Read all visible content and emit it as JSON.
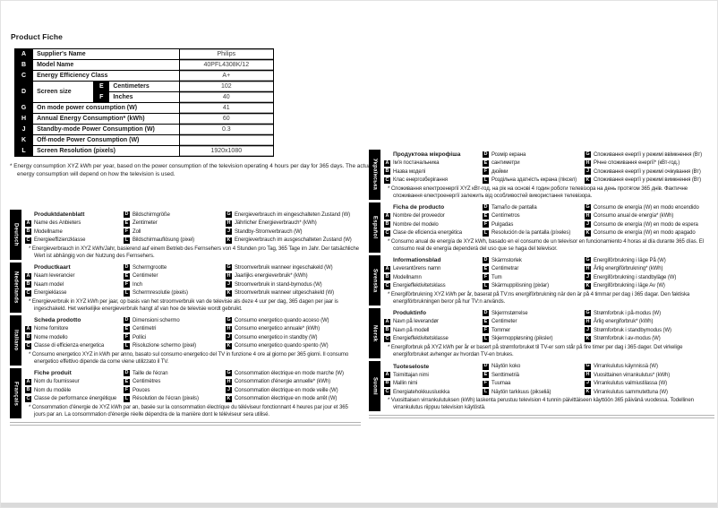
{
  "colors": {
    "badge_bg": "#000000",
    "page_bg": "#ffffff",
    "rule_gray": "#b3b3b3"
  },
  "page": {
    "title": "Product Fiche",
    "footnote": "* Energy consumption XYZ kWh per year, based on the power consumption of the television operating 4 hours per day for 365 days. The actual energy consumption will depend on how the television is used."
  },
  "letters": {
    "col1": [
      "A",
      "B",
      "C"
    ],
    "col2": [
      "D",
      "E",
      "F",
      "L"
    ],
    "col3": [
      "G",
      "H",
      "J",
      "K"
    ]
  },
  "fiche_table": {
    "rows": [
      {
        "key": "A",
        "label": "Supplier's Name",
        "value": "Philips"
      },
      {
        "key": "B",
        "label": "Model Name",
        "value": "40PFL4308K/12"
      },
      {
        "key": "C",
        "label": "Energy Efficiency Class",
        "value": "A+"
      },
      {
        "key": "D",
        "label": "Screen size",
        "sub": [
          {
            "key": "E",
            "label": "Centimeters",
            "value": "102"
          },
          {
            "key": "F",
            "label": "Inches",
            "value": "40"
          }
        ]
      },
      {
        "key": "G",
        "label": "On mode power consumption (W)",
        "value": "41"
      },
      {
        "key": "H",
        "label": "Annual Energy Consumption* (kWh)",
        "value": "60"
      },
      {
        "key": "J",
        "label": "Standby-mode Power Consumption (W)",
        "value": "0.3"
      },
      {
        "key": "K",
        "label": "Off-mode Power Consumption (W)",
        "value": ""
      },
      {
        "key": "L",
        "label": "Screen Resolution (pixels)",
        "value": "1920x1080"
      }
    ]
  },
  "languages": {
    "left": [
      {
        "name": "Deutsch",
        "title": "Produktdatenblatt",
        "items": {
          "A": "Name des Anbieters",
          "B": "Modellname",
          "C": "Energieeffizienzklasse",
          "D": "Bildschirmgröße",
          "E": "Zentimeter",
          "F": "Zoll",
          "L": "Bildschirmauflösung (pixel)",
          "G": "Energieverbrauch im eingeschalteten Zustand (W)",
          "H": "Jährlicher Energieverbrauch* (kWh)",
          "J": "Standby-Stromverbrauch (W)",
          "K": "Energieverbrauch im ausgeschalteten Zustand (W)"
        },
        "footnote": "* Energieverbrauch in XYZ kWh/Jahr, basierend auf einem Betrieb des Fernsehers von 4 Stunden pro Tag, 365 Tage im Jahr. Der tatsächliche Wert ist abhängig von der Nutzung des Fernsehers."
      },
      {
        "name": "Nederlands",
        "title": "Productkaart",
        "items": {
          "A": "Naam leverancier",
          "B": "Naam model",
          "C": "Energieklasse",
          "D": "Schermgrootte",
          "E": "Centimeter",
          "F": "Inch",
          "L": "Schermresolutie (pixels)",
          "G": "Stroomverbruik wanneer ingeschakeld (W)",
          "H": "Jaarlijks energieverbruik* (kWh)",
          "J": "Stroomverbruik in stand-bymodus (W)",
          "K": "Stroomverbruik wanneer uitgeschakeld (W)"
        },
        "footnote": "* Energieverbruik in XYZ kWh per jaar, op basis van het stroomverbruik van de televisie als deze 4 uur per dag, 365 dagen per jaar is ingeschakeld. Het werkelijke energieverbruik hangt af van hoe de televisie wordt gebruikt."
      },
      {
        "name": "Italiano",
        "title": "Scheda prodotto",
        "items": {
          "A": "Nome fornitore",
          "B": "Nome modello",
          "C": "Classe di efficienza energetica",
          "D": "Dimensioni schermo",
          "E": "Centimetri",
          "F": "Pollici",
          "L": "Risoluzione schermo (pixel)",
          "G": "Consumo energetico quando acceso (W)",
          "H": "Consumo energetico annuale* (kWh)",
          "J": "Consumo energetico in standby (W)",
          "K": "Consumo energetico quando spento (W)"
        },
        "footnote": "* Consumo energetico XYZ in kWh per anno, basato sul consumo energetico del TV in funzione 4 ore al giorno per 365 giorni. Il consumo energetico effettivo dipende da come viene utilizzato il TV."
      },
      {
        "name": "Français",
        "title": "Fiche produit",
        "items": {
          "A": "Nom du fournisseur",
          "B": "Nom du modèle",
          "C": "Classe de performance énergétique",
          "D": "Taille de l'écran",
          "E": "Centimètres",
          "F": "Pouces",
          "L": "Résolution de l'écran (pixels)",
          "G": "Consommation électrique en mode marche (W)",
          "H": "Consommation d'énergie annuelle* (kWh)",
          "J": "Consommation électrique en mode veille (W)",
          "K": "Consommation électrique en mode arrêt (W)"
        },
        "footnote": "* Consommation d'énergie de XYZ kWh par an, basée sur la consommation électrique du téléviseur fonctionnant 4 heures par jour et 365 jours par an. La consommation d'énergie réelle dépendra de la manière dont le téléviseur sera utilisé."
      }
    ],
    "right": [
      {
        "name": "Українська",
        "title": "Продуктова мікрофіша",
        "items": {
          "A": "Ім'я постачальника",
          "B": "Назва моделі",
          "C": "Клас енергозберігання",
          "D": "Розмір екрана",
          "E": "сантиметри",
          "F": "дюйми",
          "L": "Роздільна здатність екрана (піксел)",
          "G": "Споживання енергії у режимі ввімкнення (Вт)",
          "H": "Річне споживання енергії* (кВт-год.)",
          "J": "Споживання енергії у режимі очікування (Вт)",
          "K": "Споживання енергії у режимі вимкнення (Вт)"
        },
        "footnote": "* Споживання електроенергії XYZ кВт-год. на рік на основі 4 годин роботи телевізора на день протягом 365 днів. Фактичне споживання електроенергії залежить від особливостей використання телевізора."
      },
      {
        "name": "Español",
        "title": "Ficha de producto",
        "items": {
          "A": "Nombre del proveedor",
          "B": "Nombre del modelo",
          "C": "Clase de eficiencia energética",
          "D": "Tamaño de pantalla",
          "E": "Centímetros",
          "F": "Pulgadas",
          "L": "Resolución de la pantalla (píxeles)",
          "G": "Consumo de energía (W) en modo encendido",
          "H": "Consumo anual de energía* (kWh)",
          "J": "Consumo de energía (W) en modo de espera",
          "K": "Consumo de energía (W) en modo apagado"
        },
        "footnote": "* Consumo anual de energía de XYZ kWh, basado en el consumo de un televisor en funcionamiento 4 horas al día durante 365 días. El consumo real de energía dependerá del uso que se haga del televisor."
      },
      {
        "name": "Svenska",
        "title": "Informationsblad",
        "items": {
          "A": "Leverantörens namn",
          "B": "Modellnamn",
          "C": "Energieffektivitetsklass",
          "D": "Skärmstorlek",
          "E": "Centimetrar",
          "F": "Tum",
          "L": "Skärmupplösning (pixlar)",
          "G": "Energiförbrukning i läge På (W)",
          "H": "Årlig energiförbrukning* (kWh)",
          "J": "Energiförbrukning i standbyläge (W)",
          "K": "Energiförbrukning i läge Av (W)"
        },
        "footnote": "* Energiförbrukning XYZ kWh per år, baserat på TV:ns energiförbrukning när den är på 4 timmar per dag i 365 dagar. Den faktiska energiförbrukningen beror på hur TV:n används."
      },
      {
        "name": "Norsk",
        "title": "Produktinfo",
        "items": {
          "A": "Navn på leverandør",
          "B": "Navn på modell",
          "C": "Energieffektivitetsklasse",
          "D": "Skjermstørrelse",
          "E": "Centimeter",
          "F": "Tommer",
          "L": "Skjermoppløsning (piksler)",
          "G": "Strømforbruk i på-modus (W)",
          "H": "Årlig energiforbruk* (kWh)",
          "J": "Strømforbruk i standbymodus (W)",
          "K": "Strømforbruk i av-modus (W)"
        },
        "footnote": "* Energiforbruk på XYZ kWh per år er basert på strømforbruket til TV-er som står på fire timer per dag i 365 dager. Det virkelige energiforbruket avhenger av hvordan TV-en brukes."
      },
      {
        "name": "Suomi",
        "title": "Tuoteseloste",
        "items": {
          "A": "Toimittajan nimi",
          "B": "Mallin nimi",
          "C": "Energiatehokkuusluokka",
          "D": "Näytön koko",
          "E": "Senttimetriä",
          "F": "Tuumaa",
          "L": "Näytön tarkkuus (pikseliä)",
          "G": "Virrankulutus käynnissä (W)",
          "H": "Vuosittainen virrankulutus* (kWh)",
          "J": "Virrankulutus valmiustilassa (W)",
          "K": "Virrankulutus sammutettuna (W)"
        },
        "footnote": "* Vuosittaisen virrankulutuksen (kWh) laskenta perustuu television 4 tunnin päivittäiseen käyttöön 365 päivänä vuodessa. Todellinen virrankulutus riippuu television käytöstä."
      }
    ]
  }
}
